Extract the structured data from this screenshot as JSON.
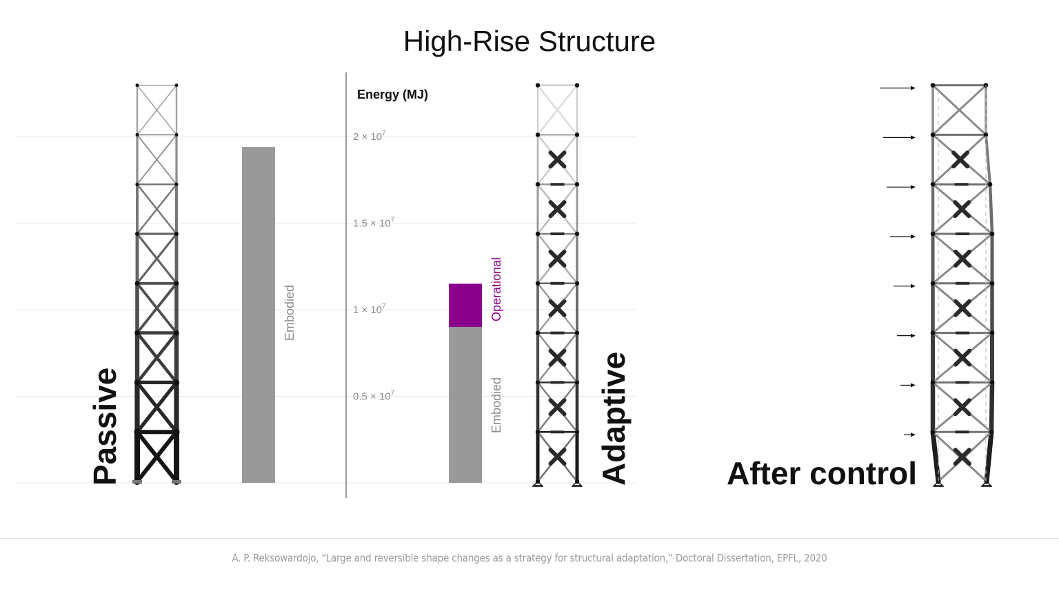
{
  "title": "High-Rise Structure",
  "citation": "A. P. Reksowardojo, “Large and reversible shape changes as a strategy for structural adaptation,” Doctoral Dissertation, EPFL, 2020",
  "labels": {
    "passive": "Passive",
    "adaptive": "Adaptive",
    "after_control": "After control",
    "embodied_passive": "Embodied",
    "embodied_adaptive": "Embodied",
    "operational": "Operational",
    "y_axis_title": "Energy (MJ)"
  },
  "colors": {
    "embodied": "#999999",
    "operational": "#8b008b",
    "gridline": "#e8e8e8",
    "axis": "#555555",
    "text": "#111111",
    "tick": "#8a8a8a"
  },
  "chart_data": {
    "type": "bar",
    "categories": [
      "Passive",
      "Adaptive"
    ],
    "series": [
      {
        "name": "Embodied",
        "values": [
          19400000,
          9000000
        ]
      },
      {
        "name": "Operational",
        "values": [
          0,
          2500000
        ]
      }
    ],
    "y_ticks": [
      {
        "value": 5000000,
        "label": "0.5 × 10",
        "exp": "7"
      },
      {
        "value": 10000000,
        "label": "1 × 10",
        "exp": "7"
      },
      {
        "value": 15000000,
        "label": "1.5 × 10",
        "exp": "7"
      },
      {
        "value": 20000000,
        "label": "2 × 10",
        "exp": "7"
      }
    ],
    "ylabel": "Energy (MJ)",
    "ylim": [
      0,
      20000000
    ],
    "grid": true,
    "stacked": true
  }
}
